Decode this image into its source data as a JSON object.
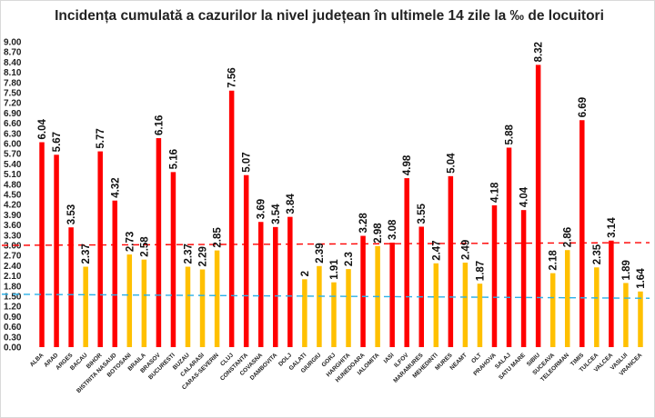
{
  "chart_data": {
    "type": "bar",
    "title": "Incidența cumulată a cazurilor la nivel județean în ultimele 14 zile la ‰ de locuitori",
    "xlabel": "",
    "ylabel": "",
    "ylim": [
      0,
      9.0
    ],
    "ytick_step": 0.3,
    "ytick_labels": [
      "0.00",
      "0.30",
      "0.60",
      "0.90",
      "1.20",
      "1.50",
      "1.80",
      "2.10",
      "2.40",
      "2.70",
      "3.00",
      "3.30",
      "3.60",
      "3.90",
      "4.20",
      "4.50",
      "4.80",
      "5.10",
      "5.40",
      "5.70",
      "6.00",
      "6.30",
      "6.60",
      "6.90",
      "7.20",
      "7.50",
      "7.80",
      "8.10",
      "8.40",
      "8.70",
      "9.00"
    ],
    "grid": false,
    "legend": "none",
    "categories": [
      "ALBA",
      "ARAD",
      "ARGES",
      "BACAU",
      "BIHOR",
      "BISTRITA NASAUD",
      "BOTOSANI",
      "BRAILA",
      "BRASOV",
      "BUCURESTI",
      "BUZAU",
      "CALARASI",
      "CARAS-SEVERIN",
      "CLUJ",
      "CONSTANTA",
      "COVASNA",
      "DAMBOVITA",
      "DOLJ",
      "GALATI",
      "GIURGIU",
      "GORJ",
      "HARGHITA",
      "HUNEDOARA",
      "IALOMITA",
      "IASI",
      "ILFOV",
      "MARAMURES",
      "MEHEDINTI",
      "MURES",
      "NEAMT",
      "OLT",
      "PRAHOVA",
      "SALAJ",
      "SATU MARE",
      "SIBIU",
      "SUCEAVA",
      "TELEORMAN",
      "TIMIS",
      "TULCEA",
      "VALCEA",
      "VASLUI",
      "VRANCEA"
    ],
    "values": [
      6.04,
      5.67,
      3.53,
      2.37,
      5.77,
      4.32,
      2.73,
      2.58,
      6.16,
      5.16,
      2.37,
      2.29,
      2.85,
      7.56,
      5.07,
      3.69,
      3.54,
      3.84,
      2,
      2.39,
      1.91,
      2.3,
      3.28,
      2.98,
      3.08,
      4.98,
      3.55,
      2.47,
      5.04,
      2.49,
      1.87,
      4.18,
      5.88,
      4.04,
      8.32,
      2.18,
      2.86,
      6.69,
      2.35,
      3.14,
      1.89,
      1.64
    ],
    "value_labels": [
      "6.04",
      "5.67",
      "3.53",
      "2.37",
      "5.77",
      "4.32",
      "2.73",
      "2.58",
      "6.16",
      "5.16",
      "2.37",
      "2.29",
      "2.85",
      "7.56",
      "5.07",
      "3.69",
      "3.54",
      "3.84",
      "2",
      "2.39",
      "1.91",
      "2.3",
      "3.28",
      "2.98",
      "3.08",
      "4.98",
      "3.55",
      "2.47",
      "5.04",
      "2.49",
      "1.87",
      "4.18",
      "5.88",
      "4.04",
      "8.32",
      "2.18",
      "2.86",
      "6.69",
      "2.35",
      "3.14",
      "1.89",
      "1.64"
    ],
    "bar_colors": [
      "#ff0000",
      "#ff0000",
      "#ff0000",
      "#ffc000",
      "#ff0000",
      "#ff0000",
      "#ffc000",
      "#ffc000",
      "#ff0000",
      "#ff0000",
      "#ffc000",
      "#ffc000",
      "#ffc000",
      "#ff0000",
      "#ff0000",
      "#ff0000",
      "#ff0000",
      "#ff0000",
      "#ffc000",
      "#ffc000",
      "#ffc000",
      "#ffc000",
      "#ff0000",
      "#ffc000",
      "#ff0000",
      "#ff0000",
      "#ff0000",
      "#ffc000",
      "#ff0000",
      "#ffc000",
      "#ffc000",
      "#ff0000",
      "#ff0000",
      "#ff0000",
      "#ff0000",
      "#ffc000",
      "#ffc000",
      "#ff0000",
      "#ffc000",
      "#ff0000",
      "#ffc000",
      "#ffc000"
    ],
    "reference_lines": [
      {
        "value": 3.0,
        "color": "#ff0000",
        "style": "dashed"
      },
      {
        "value": 1.5,
        "color": "#2ab0e8",
        "style": "dashed"
      }
    ]
  }
}
